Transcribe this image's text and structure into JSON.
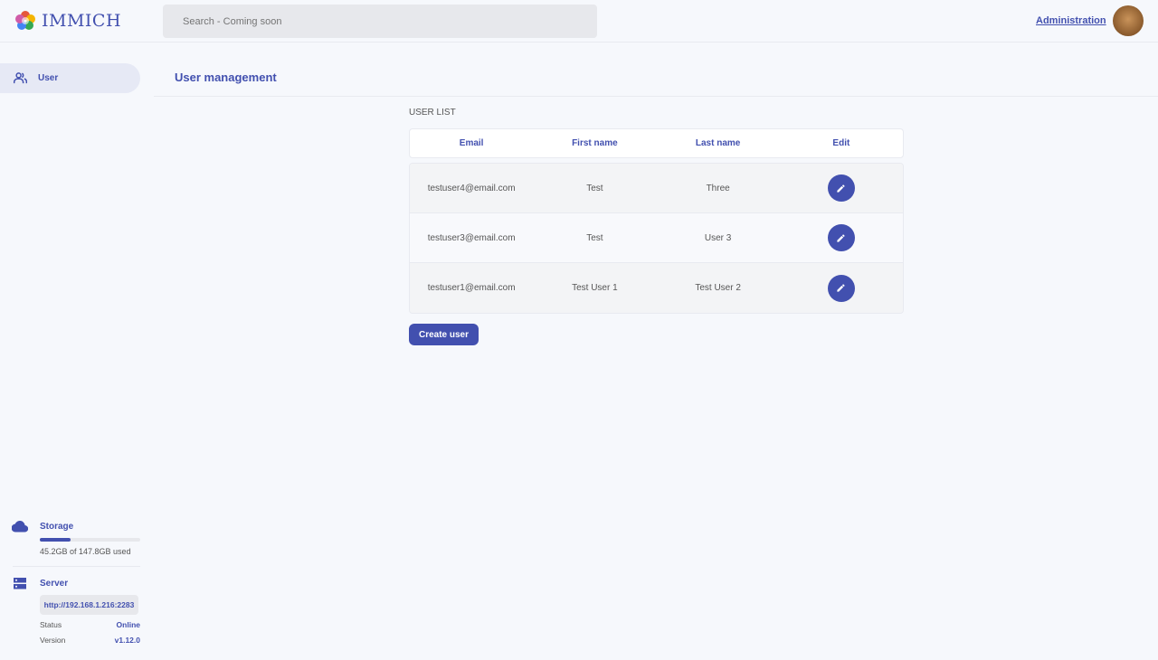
{
  "header": {
    "logo_text": "IMMICH",
    "search_placeholder": "Search - Coming soon",
    "admin_link": "Administration"
  },
  "sidebar": {
    "items": [
      {
        "label": "User",
        "icon": "users-icon"
      }
    ],
    "storage": {
      "title": "Storage",
      "used_text": "45.2GB of 147.8GB used",
      "used_fraction": 0.306
    },
    "server": {
      "title": "Server",
      "url": "http://192.168.1.216:2283",
      "status_label": "Status",
      "status_value": "Online",
      "version_label": "Version",
      "version_value": "v1.12.0"
    }
  },
  "main": {
    "title": "User management",
    "section_label": "USER LIST",
    "columns": [
      "Email",
      "First name",
      "Last name",
      "Edit"
    ],
    "rows": [
      {
        "email": "testuser4@email.com",
        "first": "Test",
        "last": "Three"
      },
      {
        "email": "testuser3@email.com",
        "first": "Test",
        "last": "User 3"
      },
      {
        "email": "testuser1@email.com",
        "first": "Test User 1",
        "last": "Test User 2"
      }
    ],
    "create_button": "Create user"
  },
  "colors": {
    "accent": "#4250af",
    "background": "#f6f8fc"
  }
}
